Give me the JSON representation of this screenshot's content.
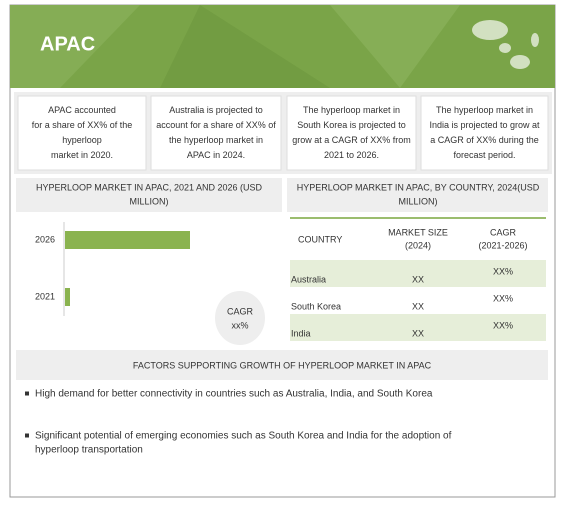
{
  "header": {
    "title": "APAC"
  },
  "cards": [
    [
      "APAC accounted",
      "for a share of XX% of the",
      "hyperloop",
      "market in 2020."
    ],
    [
      "Australia is projected to",
      "account for a share of XX% of",
      "the hyperloop market in",
      "APAC in 2024."
    ],
    [
      "The hyperloop market in",
      "South Korea is projected to",
      "grow at a CAGR of XX% from",
      "2021 to 2026."
    ],
    [
      "The hyperloop market in",
      "India is projected to grow at",
      "a CAGR of XX% during the",
      "forecast period."
    ]
  ],
  "chart": {
    "title": [
      "HYPERLOOP MARKET IN APAC, 2021 AND 2026 (USD",
      "MILLION)"
    ],
    "categories": [
      "2026",
      "2021"
    ],
    "note": [
      "CAGR",
      "xx%"
    ]
  },
  "table": {
    "title": [
      "HYPERLOOP MARKET IN APAC, BY COUNTRY, 2024(USD",
      "MILLION)"
    ],
    "columns": [
      [
        "COUNTRY"
      ],
      [
        "MARKET SIZE",
        "(2024)"
      ],
      [
        "CAGR",
        "(2021-2026)"
      ]
    ],
    "rows": [
      [
        "Australia",
        "XX",
        "XX%"
      ],
      [
        "South Korea",
        "XX",
        "XX%"
      ],
      [
        "India",
        "XX",
        "XX%"
      ]
    ]
  },
  "factors": {
    "title": "FACTORS SUPPORTING GROWTH OF HYPERLOOP MARKET IN APAC",
    "items": [
      [
        "High demand for better connectivity in countries such as Australia, India, and South Korea"
      ],
      [
        "Significant potential of emerging economies such as South Korea and India for the adoption of",
        "hyperloop transportation"
      ]
    ]
  }
}
